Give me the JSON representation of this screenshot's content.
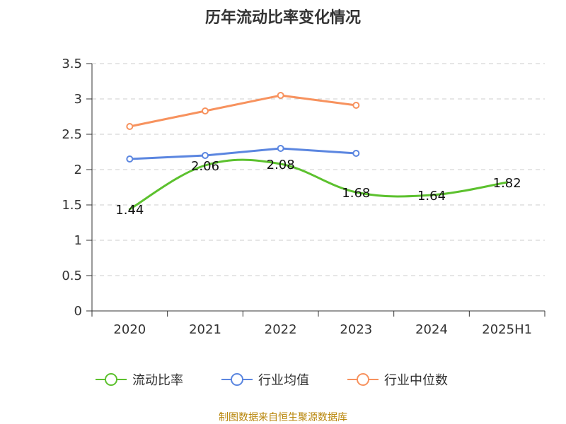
{
  "chart_data": {
    "type": "line",
    "title": "历年流动比率变化情况",
    "categories": [
      "2020",
      "2021",
      "2022",
      "2023",
      "2024",
      "2025H1"
    ],
    "ylim": [
      0,
      3.5
    ],
    "yticks": [
      "0",
      "0.5",
      "1",
      "1.5",
      "2",
      "2.5",
      "3",
      "3.5"
    ],
    "grid": true,
    "legend_position": "bottom",
    "series": [
      {
        "name": "流动比率",
        "color": "#5cc12e",
        "values": [
          1.44,
          2.06,
          2.08,
          1.68,
          1.64,
          1.82
        ],
        "data_labels": [
          "1.44",
          "2.06",
          "2.08",
          "1.68",
          "1.64",
          "1.82"
        ],
        "smooth": true,
        "markers": false
      },
      {
        "name": "行业均值",
        "color": "#5b86e0",
        "values": [
          2.15,
          2.2,
          2.3,
          2.23,
          null,
          null
        ],
        "markers": true
      },
      {
        "name": "行业中位数",
        "color": "#f7925e",
        "values": [
          2.61,
          2.83,
          3.05,
          2.91,
          null,
          null
        ],
        "markers": true
      }
    ]
  },
  "source_text": "制图数据来自恒生聚源数据库"
}
